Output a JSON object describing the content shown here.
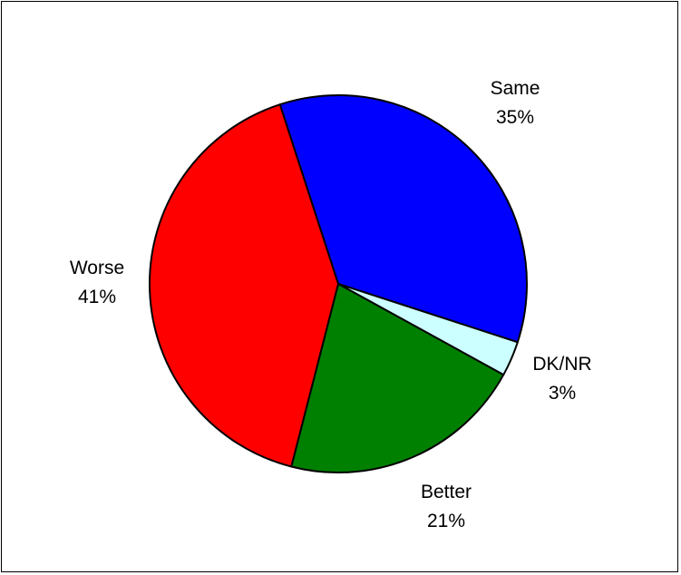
{
  "chart_data": {
    "type": "pie",
    "title": "",
    "slices": [
      {
        "label": "Same",
        "value": 35,
        "pct_text": "35%",
        "color": "#0000FF"
      },
      {
        "label": "DK/NR",
        "value": 3,
        "pct_text": "3%",
        "color": "#CCFFFF"
      },
      {
        "label": "Better",
        "value": 21,
        "pct_text": "21%",
        "color": "#008000"
      },
      {
        "label": "Worse",
        "value": 41,
        "pct_text": "41%",
        "color": "#FF0000"
      }
    ],
    "slice_outline_color": "#000000",
    "start_direction": "top-left, clockwise",
    "legend": "none"
  }
}
